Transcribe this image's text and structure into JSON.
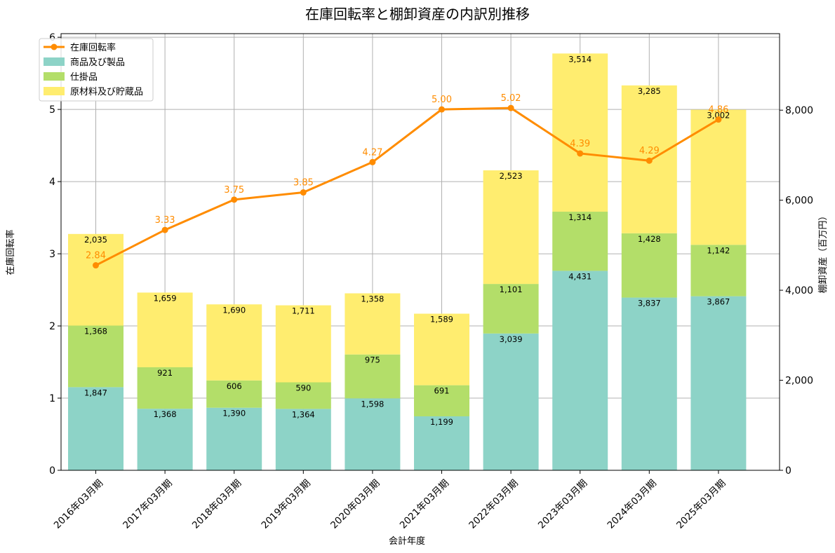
{
  "chart_data": {
    "type": "bar",
    "title": "在庫回転率と棚卸資産の内訳別推移",
    "xlabel": "会計年度",
    "ylabel_left": "在庫回転率",
    "ylabel_right": "棚卸資産（百万円）",
    "categories": [
      "2016年03月期",
      "2017年03月期",
      "2018年03月期",
      "2019年03月期",
      "2020年03月期",
      "2021年03月期",
      "2022年03月期",
      "2023年03月期",
      "2024年03月期",
      "2025年03月期"
    ],
    "series": [
      {
        "name": "商品及び製品",
        "axis": "right",
        "stack": true,
        "color": "#8dd3c7",
        "values": [
          1847,
          1368,
          1390,
          1364,
          1598,
          1199,
          3039,
          4431,
          3837,
          3867
        ],
        "labels": [
          "1,847",
          "1,368",
          "1,390",
          "1,364",
          "1,598",
          "1,199",
          "3,039",
          "4,431",
          "3,837",
          "3,867"
        ]
      },
      {
        "name": "仕掛品",
        "axis": "right",
        "stack": true,
        "color": "#b3de69",
        "values": [
          1368,
          921,
          606,
          590,
          975,
          691,
          1101,
          1314,
          1428,
          1142
        ],
        "labels": [
          "1,368",
          "921",
          "606",
          "590",
          "975",
          "691",
          "1,101",
          "1,314",
          "1,428",
          "1,142"
        ]
      },
      {
        "name": "原材料及び貯蔵品",
        "axis": "right",
        "stack": true,
        "color": "#ffed6f",
        "values": [
          2035,
          1659,
          1690,
          1711,
          1358,
          1589,
          2523,
          3514,
          3285,
          3002
        ],
        "labels": [
          "2,035",
          "1,659",
          "1,690",
          "1,711",
          "1,358",
          "1,589",
          "2,523",
          "3,514",
          "3,285",
          "3,002"
        ]
      },
      {
        "name": "在庫回転率",
        "axis": "left",
        "type": "line",
        "color": "#ff8c00",
        "values": [
          2.84,
          3.33,
          3.75,
          3.85,
          4.27,
          5.0,
          5.02,
          4.39,
          4.29,
          4.86
        ],
        "labels": [
          "2.84",
          "3.33",
          "3.75",
          "3.85",
          "4.27",
          "5.00",
          "5.02",
          "4.39",
          "4.29",
          "4.86"
        ]
      }
    ],
    "ylim_left": [
      0,
      6.05
    ],
    "ylim_right": [
      0,
      9700
    ],
    "yticks_left": [
      "0",
      "1",
      "2",
      "3",
      "4",
      "5",
      "6"
    ],
    "yticks_right": [
      "0",
      "2,000",
      "4,000",
      "6,000",
      "8,000"
    ],
    "yticks_right_values": [
      0,
      2000,
      4000,
      6000,
      8000
    ],
    "legend": [
      "在庫回転率",
      "商品及び製品",
      "仕掛品",
      "原材料及び貯蔵品"
    ],
    "legend_position": "top-left",
    "grid": true
  }
}
